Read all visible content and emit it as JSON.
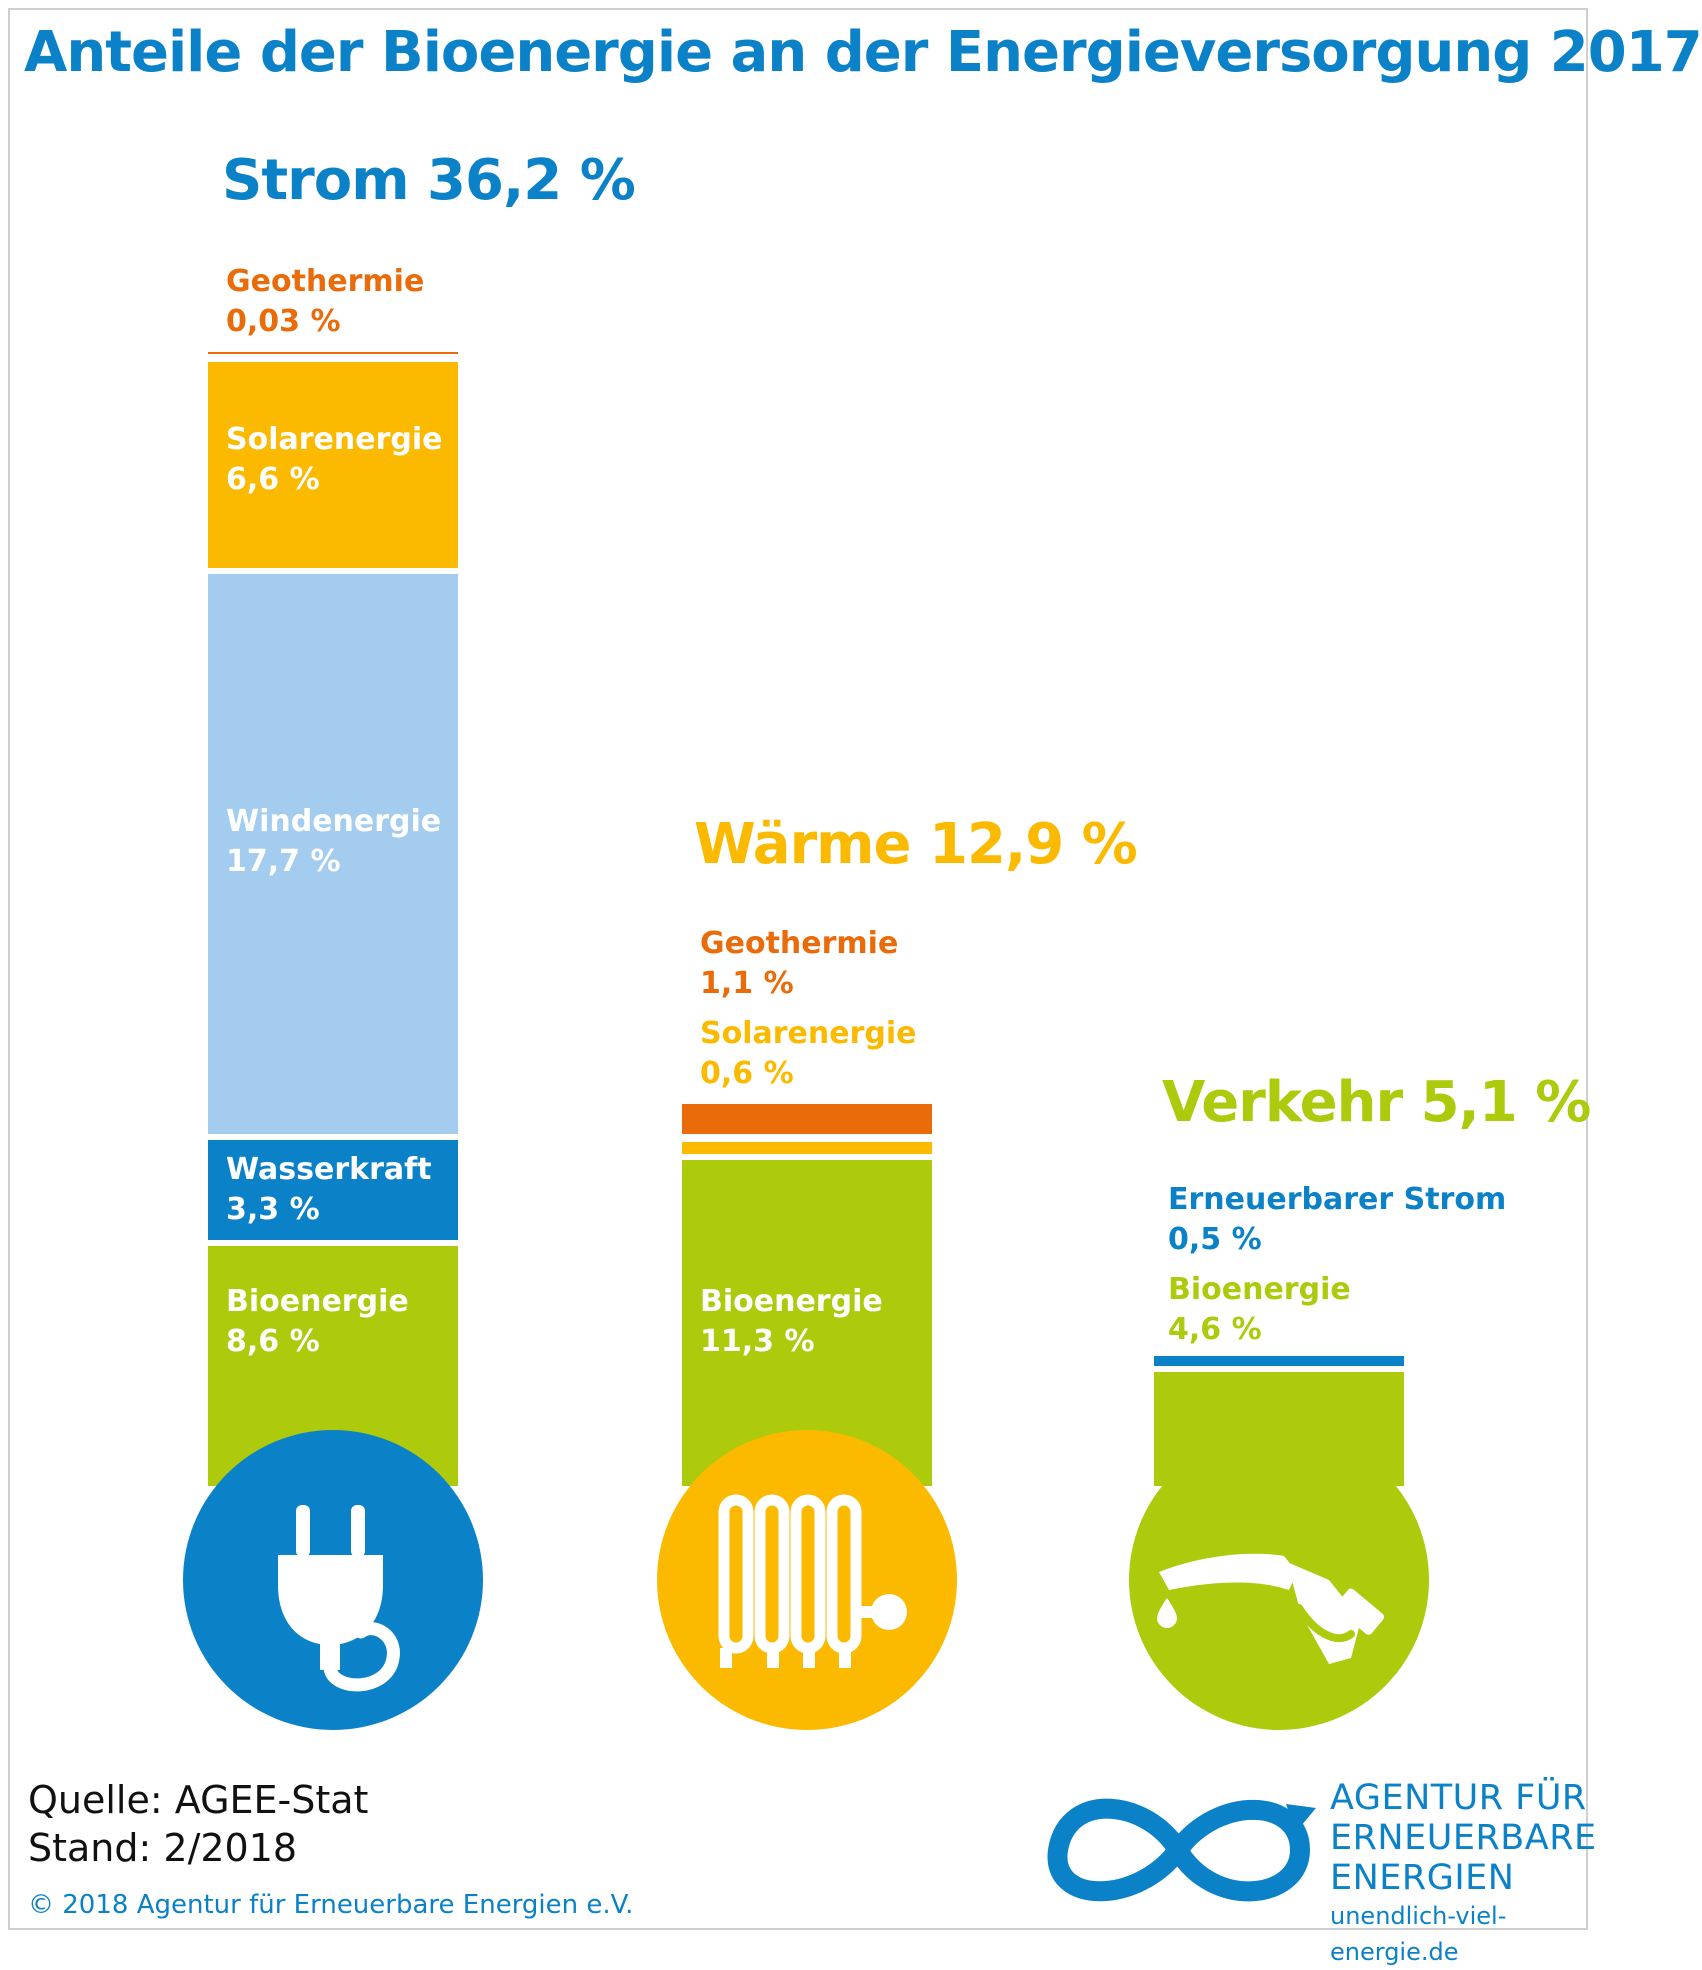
{
  "title": "Anteile der Bioenergie an der Energieversorgung 2017",
  "colors": {
    "blue": "#0b82c8",
    "light_blue": "#a4ccee",
    "orange": "#e96b0a",
    "yellow": "#fbb900",
    "green": "#aeca0d",
    "white": "#ffffff"
  },
  "chart_data": {
    "type": "bar",
    "title": "Anteile der Bioenergie an der Energieversorgung 2017",
    "categories": [
      "Strom",
      "Wärme",
      "Verkehr"
    ],
    "category_titles": [
      "Strom 36,2 %",
      "Wärme 12,9 %",
      "Verkehr 5,1 %"
    ],
    "totals": [
      36.2,
      12.9,
      5.1
    ],
    "stacks": [
      {
        "category": "Strom",
        "icon": "power-plug-icon",
        "segments": [
          {
            "name": "Bioenergie",
            "value": 8.6,
            "label": "8,6 %"
          },
          {
            "name": "Wasserkraft",
            "value": 3.3,
            "label": "3,3 %"
          },
          {
            "name": "Windenergie",
            "value": 17.7,
            "label": "17,7 %"
          },
          {
            "name": "Solarenergie",
            "value": 6.6,
            "label": "6,6 %"
          },
          {
            "name": "Geothermie",
            "value": 0.03,
            "label": "0,03 %"
          }
        ]
      },
      {
        "category": "Wärme",
        "icon": "radiator-icon",
        "segments": [
          {
            "name": "Bioenergie",
            "value": 11.3,
            "label": "11,3 %"
          },
          {
            "name": "Solarenergie",
            "value": 0.6,
            "label": "0,6 %"
          },
          {
            "name": "Geothermie",
            "value": 1.1,
            "label": "1,1 %"
          }
        ]
      },
      {
        "category": "Verkehr",
        "icon": "fuel-nozzle-icon",
        "segments": [
          {
            "name": "Bioenergie",
            "value": 4.6,
            "label": "4,6 %"
          },
          {
            "name": "Erneuerbarer Strom",
            "value": 0.5,
            "label": "0,5 %"
          }
        ]
      }
    ]
  },
  "footer": {
    "quelle": "Quelle: AGEE-Stat",
    "stand": "Stand: 2/2018",
    "copyright": "© 2018 Agentur für Erneuerbare Energien e.V."
  },
  "logo": {
    "icon": "infinity-logo-icon",
    "line1": "AGENTUR FÜR",
    "line2": "ERNEUERBARE",
    "line3": "ENERGIEN",
    "url": "unendlich-viel-energie.de"
  }
}
